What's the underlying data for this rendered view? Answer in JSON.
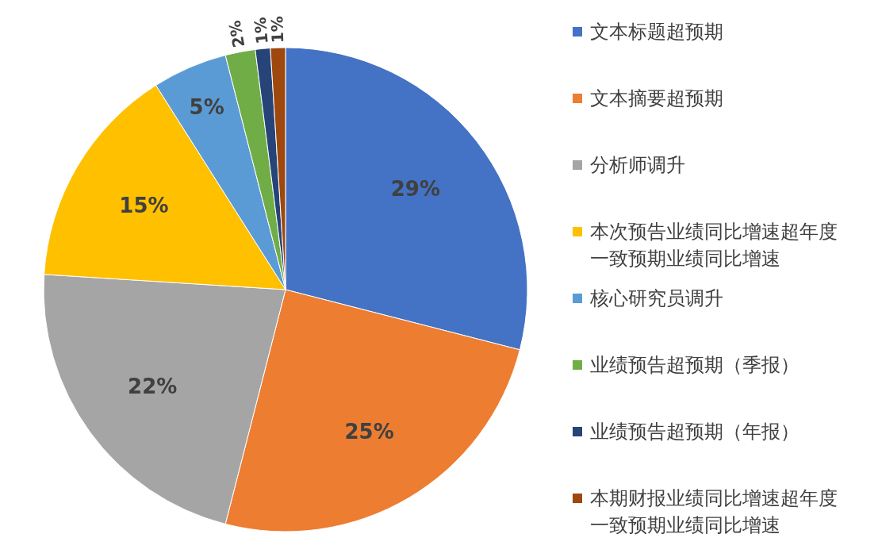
{
  "chart_data": {
    "type": "pie",
    "categories": [
      "文本标题超预期",
      "文本摘要超预期",
      "分析师调升",
      "本次预告业绩同比增速超年度一致预期业绩同比增速",
      "核心研究员调升",
      "业绩预告超预期（季报）",
      "业绩预告超预期（年报）",
      "本期财报业绩同比增速超年度一致预期业绩同比增速"
    ],
    "values": [
      29,
      25,
      22,
      15,
      5,
      2,
      1,
      1
    ],
    "colors": [
      "#4472c4",
      "#ed7d31",
      "#a5a5a5",
      "#ffc000",
      "#5b9bd5",
      "#70ad47",
      "#264478",
      "#9e480e"
    ],
    "value_labels": [
      "29%",
      "25%",
      "22%",
      "15%",
      "5%",
      "2%",
      "1%",
      "1%"
    ],
    "legend": "right"
  }
}
